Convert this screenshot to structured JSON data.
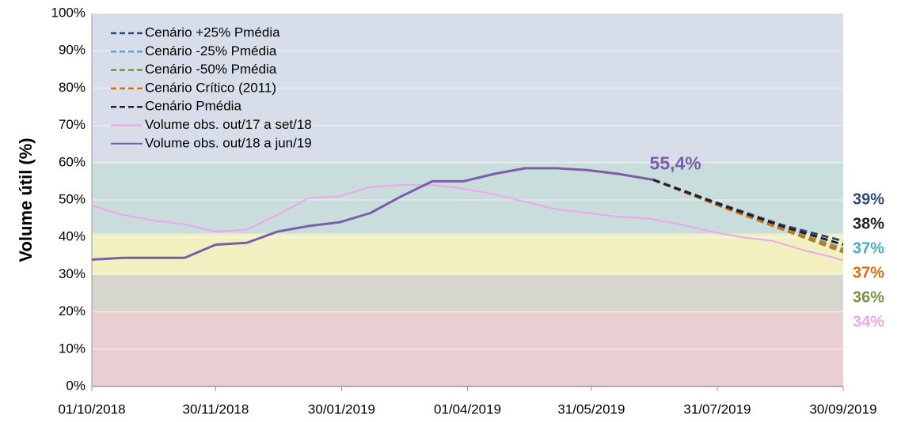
{
  "chart_data": {
    "type": "line",
    "y_label": "Volume útil (%)",
    "xlim": [
      "2018-10-01",
      "2019-09-30"
    ],
    "xticks": [
      {
        "value": "2018-10-01",
        "label": "01/10/2018"
      },
      {
        "value": "2018-11-30",
        "label": "30/11/2018"
      },
      {
        "value": "2019-01-30",
        "label": "30/01/2019"
      },
      {
        "value": "2019-04-01",
        "label": "01/04/2019"
      },
      {
        "value": "2019-05-31",
        "label": "31/05/2019"
      },
      {
        "value": "2019-07-31",
        "label": "31/07/2019"
      },
      {
        "value": "2019-09-30",
        "label": "30/09/2019"
      }
    ],
    "ylim": [
      0,
      100
    ],
    "yticks": [
      {
        "value": 0,
        "label": "0%"
      },
      {
        "value": 10,
        "label": "10%"
      },
      {
        "value": 20,
        "label": "20%"
      },
      {
        "value": 30,
        "label": "30%"
      },
      {
        "value": 40,
        "label": "40%"
      },
      {
        "value": 50,
        "label": "50%"
      },
      {
        "value": 60,
        "label": "60%"
      },
      {
        "value": 70,
        "label": "70%"
      },
      {
        "value": 80,
        "label": "80%"
      },
      {
        "value": 90,
        "label": "90%"
      },
      {
        "value": 100,
        "label": "100%"
      }
    ],
    "bands": [
      {
        "from": 0,
        "to": 20,
        "color": "#e9cfd2"
      },
      {
        "from": 20,
        "to": 30,
        "color": "#d6d6cd"
      },
      {
        "from": 30,
        "to": 41,
        "color": "#f2f0c0"
      },
      {
        "from": 41,
        "to": 60,
        "color": "#cadddd"
      },
      {
        "from": 60,
        "to": 100,
        "color": "#d8dee9"
      }
    ],
    "legend": "top-left",
    "series": [
      {
        "name": "Cenário +25% Pmédia",
        "color": "#2e4a7d",
        "dashed": true,
        "x": [
          "2019-06-30",
          "2019-07-31",
          "2019-08-31",
          "2019-09-30"
        ],
        "values": [
          55.4,
          49.2,
          43.3,
          39
        ],
        "value_labels": [
          null,
          null,
          null,
          "39%"
        ]
      },
      {
        "name": "Cenário -25% Pmédia",
        "color": "#4bacc6",
        "dashed": true,
        "x": [
          "2019-06-30",
          "2019-07-31",
          "2019-08-31",
          "2019-09-30"
        ],
        "values": [
          55.4,
          48.8,
          42.6,
          37
        ],
        "value_labels": [
          null,
          null,
          null,
          "37%"
        ]
      },
      {
        "name": "Cenário -50% Pmédia",
        "color": "#77933c",
        "dashed": true,
        "x": [
          "2019-06-30",
          "2019-07-31",
          "2019-08-31",
          "2019-09-30"
        ],
        "values": [
          55.4,
          48.6,
          42.2,
          36
        ],
        "value_labels": [
          null,
          null,
          null,
          "36%"
        ]
      },
      {
        "name": "Cenário Crítico (2011)",
        "color": "#e46c0a",
        "dashed": true,
        "x": [
          "2019-06-30",
          "2019-07-31",
          "2019-08-31",
          "2019-09-30"
        ],
        "values": [
          55.4,
          48.7,
          42.4,
          36.6
        ],
        "value_labels": [
          null,
          null,
          null,
          "37%"
        ]
      },
      {
        "name": "Cenário Pmédia",
        "color": "#222222",
        "dashed": true,
        "x": [
          "2019-06-30",
          "2019-07-31",
          "2019-08-31",
          "2019-09-30"
        ],
        "values": [
          55.4,
          49,
          43,
          38
        ],
        "value_labels": [
          null,
          null,
          null,
          "38%"
        ]
      },
      {
        "name": "Volume obs. out/17 a set/18",
        "color": "#eea6ea",
        "dashed": false,
        "x": [
          "2018-10-01",
          "2018-10-16",
          "2018-10-31",
          "2018-11-15",
          "2018-11-30",
          "2018-12-15",
          "2018-12-30",
          "2019-01-14",
          "2019-01-29",
          "2019-02-13",
          "2019-02-28",
          "2019-03-15",
          "2019-03-30",
          "2019-04-14",
          "2019-04-29",
          "2019-05-14",
          "2019-05-29",
          "2019-06-13",
          "2019-06-28",
          "2019-07-13",
          "2019-07-28",
          "2019-08-12",
          "2019-08-27",
          "2019-09-11",
          "2019-09-26",
          "2019-09-30"
        ],
        "values": [
          48.5,
          46,
          44.5,
          43.5,
          41.5,
          42,
          46,
          50.5,
          51,
          53.5,
          54,
          54,
          53,
          51.5,
          49.5,
          47.5,
          46.5,
          45.5,
          45,
          43.5,
          41.5,
          40,
          39,
          36.5,
          34.5,
          33.8
        ],
        "value_labels": [
          null,
          null,
          null,
          null,
          null,
          null,
          null,
          null,
          null,
          null,
          null,
          null,
          null,
          null,
          null,
          null,
          null,
          null,
          null,
          null,
          null,
          null,
          null,
          null,
          null,
          "34%"
        ]
      },
      {
        "name": "Volume obs. out/18 a jun/19",
        "color": "#7b5ea7",
        "dashed": false,
        "x": [
          "2018-10-01",
          "2018-10-16",
          "2018-10-31",
          "2018-11-15",
          "2018-11-30",
          "2018-12-15",
          "2018-12-30",
          "2019-01-14",
          "2019-01-29",
          "2019-02-13",
          "2019-02-28",
          "2019-03-15",
          "2019-03-30",
          "2019-04-14",
          "2019-04-29",
          "2019-05-14",
          "2019-05-29",
          "2019-06-13",
          "2019-06-30"
        ],
        "values": [
          34,
          34.5,
          34.5,
          34.5,
          38,
          38.5,
          41.5,
          43,
          44,
          46.5,
          51,
          55,
          55,
          57,
          58.5,
          58.5,
          58,
          57,
          55.4
        ],
        "value_labels": [
          null,
          null,
          null,
          null,
          null,
          null,
          null,
          null,
          null,
          null,
          null,
          null,
          null,
          null,
          null,
          null,
          null,
          null,
          "55,4%"
        ]
      }
    ]
  }
}
